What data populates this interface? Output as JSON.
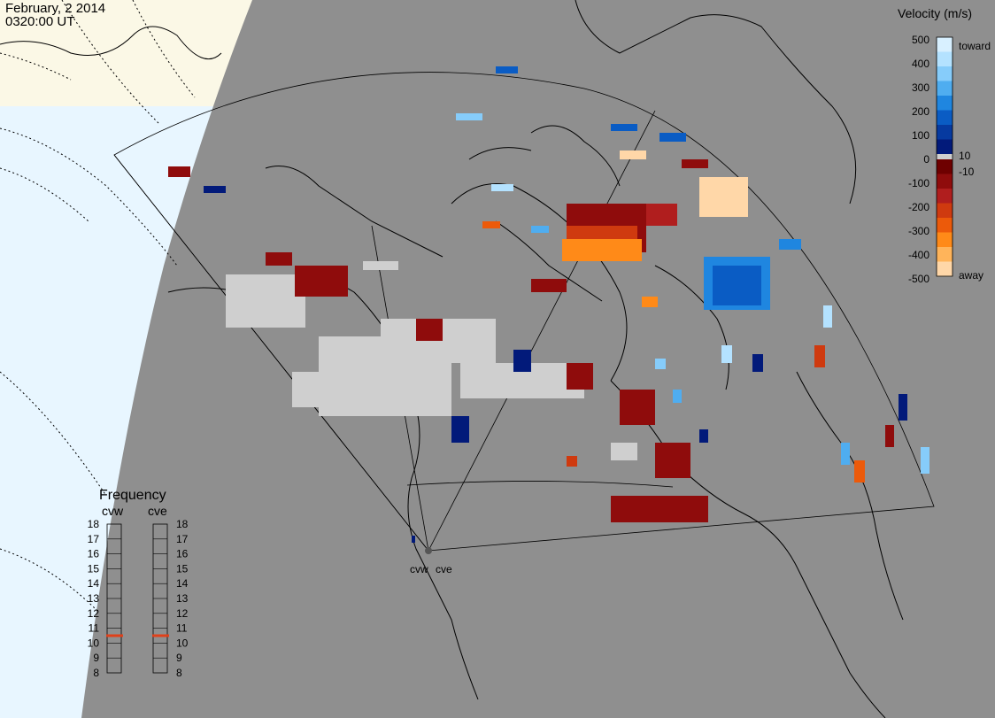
{
  "header": {
    "date": "February, 2 2014",
    "time": "0320:00 UT"
  },
  "radars": [
    {
      "code": "cvw"
    },
    {
      "code": "cve"
    }
  ],
  "velocity_scale": {
    "title": "Velocity (m/s)",
    "toward_label": "toward",
    "away_label": "away",
    "ticks": [
      "500",
      "400",
      "300",
      "200",
      "100",
      "10",
      "0",
      "-10",
      "-100",
      "-200",
      "-300",
      "-400",
      "-500"
    ],
    "colors_toward": [
      "#d8f0ff",
      "#b4e2ff",
      "#86ccfa",
      "#4fadf0",
      "#1f86e0",
      "#0a5cc4",
      "#063aa0",
      "#021a7a"
    ],
    "colors_away": [
      "#6e0000",
      "#8f0c0c",
      "#b01e1e",
      "#cf3a0f",
      "#ec5a0a",
      "#ff8a18",
      "#ffb45a",
      "#ffd7a8"
    ]
  },
  "frequency_panel": {
    "title": "Frequency",
    "unit_hint": "",
    "ticks": [
      "18",
      "17",
      "16",
      "15",
      "14",
      "13",
      "12",
      "11",
      "10",
      "9",
      "8"
    ],
    "cvw_value_mhz": 10.5,
    "cve_value_mhz": 10.5,
    "marker_color": "#e0401a"
  },
  "colors": {
    "land": "#8f8f8f",
    "ice": "#fbf8e6",
    "ocean": "#e8f6ff",
    "ground_scatter": "#cfcfcf"
  }
}
